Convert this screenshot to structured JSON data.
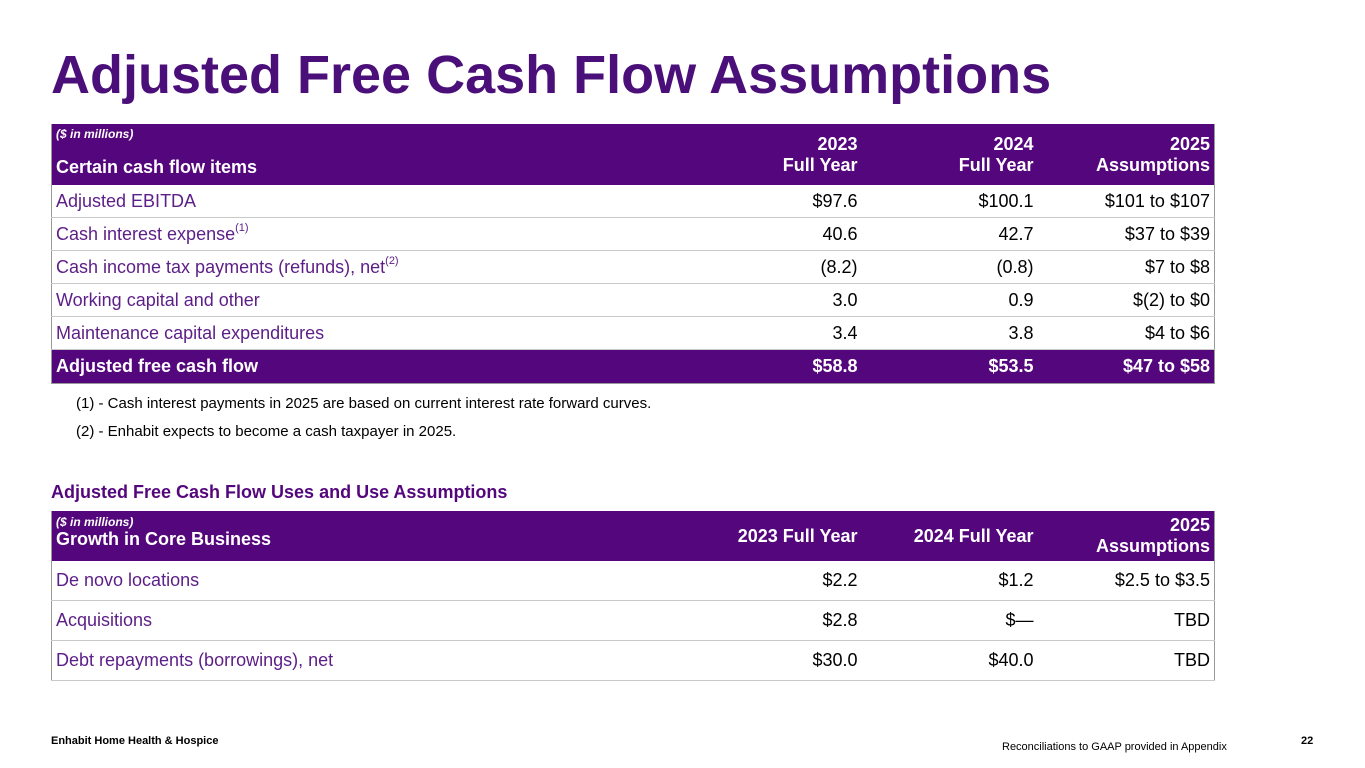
{
  "title": "Adjusted Free Cash Flow Assumptions",
  "table1": {
    "units": "($ in millions)",
    "subject": "Certain cash flow items",
    "columns": [
      {
        "line1": "2023",
        "line2": "Full Year"
      },
      {
        "line1": "2024",
        "line2": "Full Year"
      },
      {
        "line1": "2025",
        "line2": "Assumptions"
      }
    ],
    "rows": [
      {
        "label": "Adjusted EBITDA",
        "sup": "",
        "values": [
          "$97.6",
          "$100.1",
          "$101 to $107"
        ]
      },
      {
        "label": "Cash interest expense",
        "sup": "(1)",
        "values": [
          "40.6",
          "42.7",
          "$37 to $39"
        ]
      },
      {
        "label": "Cash income tax payments (refunds), net",
        "sup": "(2)",
        "values": [
          "(8.2)",
          "(0.8)",
          "$7 to $8"
        ]
      },
      {
        "label": "Working capital and other",
        "sup": "",
        "values": [
          "3.0",
          "0.9",
          "$(2) to $0"
        ]
      },
      {
        "label": "Maintenance capital expenditures",
        "sup": "",
        "values": [
          "3.4",
          "3.8",
          "$4 to $6"
        ]
      }
    ],
    "total": {
      "label": "Adjusted free cash flow",
      "values": [
        "$58.8",
        "$53.5",
        "$47 to $58"
      ]
    }
  },
  "footnotes": [
    "(1) - Cash interest payments in 2025 are based on current interest rate forward curves.",
    "(2) - Enhabit expects to become a cash taxpayer in 2025."
  ],
  "section2_title": "Adjusted Free Cash Flow Uses and Use Assumptions",
  "table2": {
    "units": "($ in millions)",
    "subject": "Growth in Core Business",
    "columns": [
      {
        "line1": "2023 Full Year",
        "line2": ""
      },
      {
        "line1": "2024 Full Year",
        "line2": ""
      },
      {
        "line1": "2025",
        "line2": "Assumptions"
      }
    ],
    "rows": [
      {
        "label": "De novo locations",
        "values": [
          "$2.2",
          "$1.2",
          "$2.5 to $3.5"
        ]
      },
      {
        "label": "Acquisitions",
        "values": [
          "$2.8",
          "$—",
          "TBD"
        ]
      },
      {
        "label": "Debt repayments (borrowings), net",
        "values": [
          "$30.0",
          "$40.0",
          "TBD"
        ]
      }
    ]
  },
  "footer": {
    "company": "Enhabit Home Health & Hospice",
    "note": "Reconciliations to GAAP provided in Appendix",
    "page": "22"
  },
  "colors": {
    "brand_purple": "#54077c",
    "title_purple": "#4b0f7a",
    "label_purple": "#5c1e87"
  }
}
